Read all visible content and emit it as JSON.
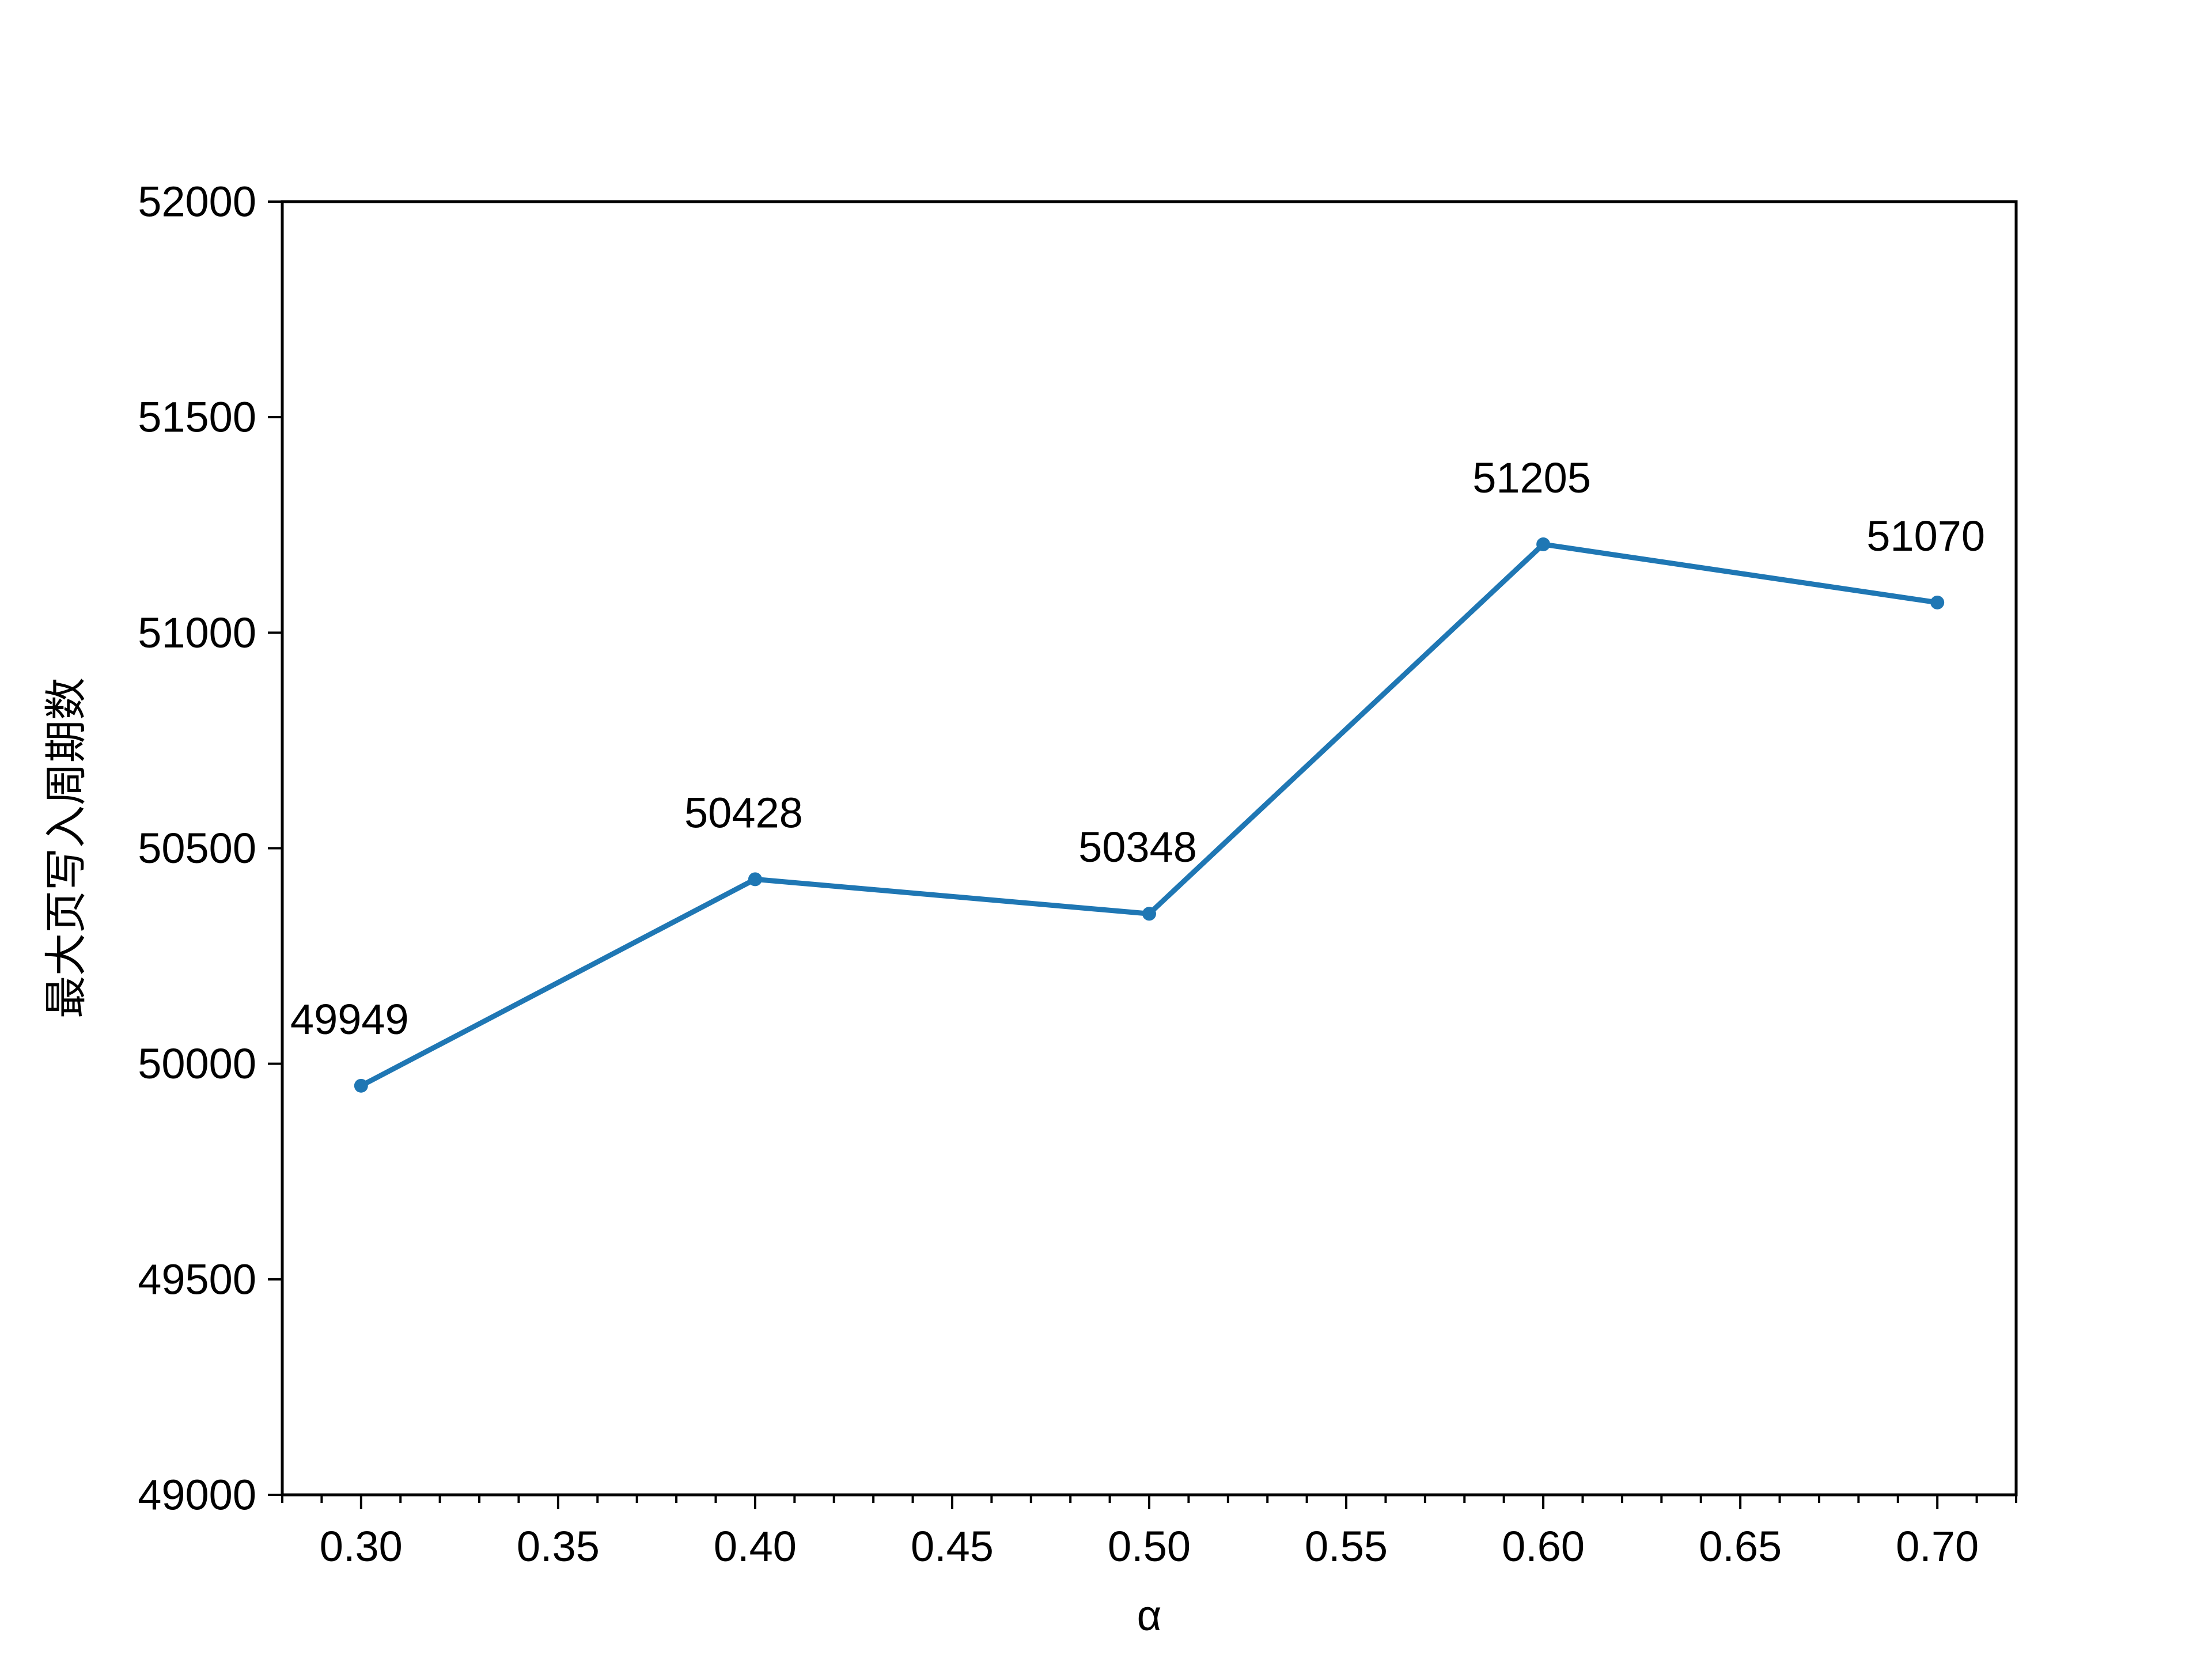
{
  "chart_data": {
    "type": "line",
    "title": "",
    "xlabel": "α",
    "ylabel": "最大页写入周期数",
    "x": [
      0.3,
      0.4,
      0.5,
      0.6,
      0.7
    ],
    "series": [
      {
        "values": [
          49949,
          50428,
          50348,
          51205,
          51070
        ],
        "color": "#1f77b4",
        "marker": "dot"
      }
    ],
    "data_labels": [
      "49949",
      "50428",
      "50348",
      "51205",
      "51070"
    ],
    "xlim": [
      0.28,
      0.72
    ],
    "ylim": [
      49000,
      52000
    ],
    "xticks": [
      0.3,
      0.35,
      0.4,
      0.45,
      0.5,
      0.55,
      0.6,
      0.65,
      0.7
    ],
    "xtick_labels": [
      "0.30",
      "0.35",
      "0.40",
      "0.45",
      "0.50",
      "0.55",
      "0.60",
      "0.65",
      "0.70"
    ],
    "yticks": [
      49000,
      49500,
      50000,
      50500,
      51000,
      51500,
      52000
    ],
    "ytick_labels": [
      "49000",
      "49500",
      "50000",
      "50500",
      "51000",
      "51500",
      "52000"
    ],
    "grid": false,
    "legend": "none"
  }
}
